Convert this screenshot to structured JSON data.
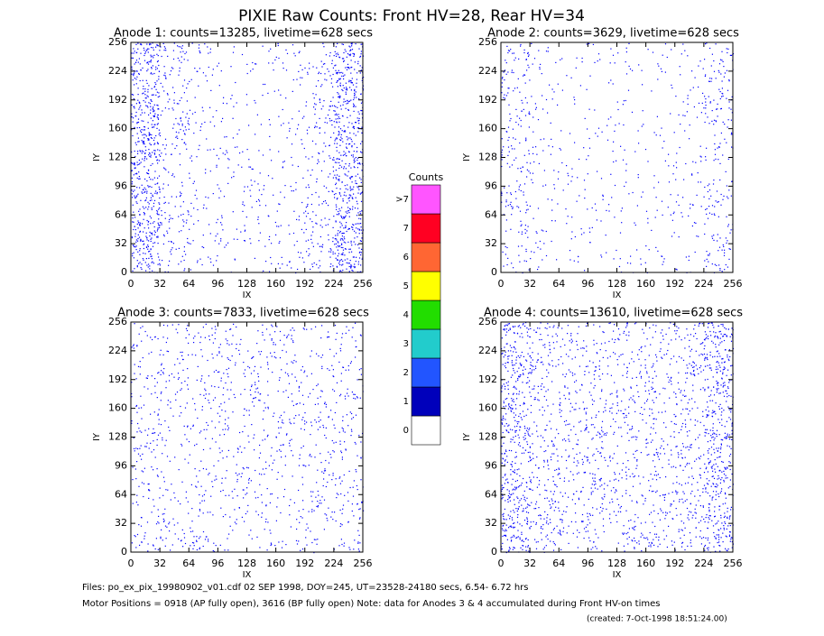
{
  "title": "PIXIE Raw Counts:  Front HV=28, Rear HV=34",
  "chart_data": [
    {
      "type": "scatter",
      "title": "Anode 1: counts=13285, livetime=628 secs",
      "xlabel": "IX",
      "ylabel": "IY",
      "xlim": [
        0,
        256
      ],
      "ylim": [
        0,
        256
      ],
      "xticks": [
        0,
        32,
        64,
        96,
        128,
        160,
        192,
        224,
        256
      ],
      "yticks": [
        0,
        32,
        64,
        96,
        128,
        160,
        192,
        224,
        256
      ],
      "color": "#0000ff",
      "column_density": [
        30,
        10,
        5,
        4,
        4,
        5,
        10,
        30
      ]
    },
    {
      "type": "scatter",
      "title": "Anode 2: counts=3629, livetime=628 secs",
      "xlabel": "IX",
      "ylabel": "IY",
      "xlim": [
        0,
        256
      ],
      "ylim": [
        0,
        256
      ],
      "xticks": [
        0,
        32,
        64,
        96,
        128,
        160,
        192,
        224,
        256
      ],
      "yticks": [
        0,
        32,
        64,
        96,
        128,
        160,
        192,
        224,
        256
      ],
      "color": "#0000ff",
      "column_density": [
        10,
        4,
        3,
        3,
        3,
        3,
        4,
        10
      ]
    },
    {
      "type": "scatter",
      "title": "Anode 3: counts=7833, livetime=628 secs",
      "xlabel": "IX",
      "ylabel": "IY",
      "xlim": [
        0,
        256
      ],
      "ylim": [
        0,
        256
      ],
      "xticks": [
        0,
        32,
        64,
        96,
        128,
        160,
        192,
        224,
        256
      ],
      "yticks": [
        0,
        32,
        64,
        96,
        128,
        160,
        192,
        224,
        256
      ],
      "color": "#0000ff",
      "column_density": [
        8,
        7,
        7,
        7,
        7,
        7,
        7,
        8
      ]
    },
    {
      "type": "scatter",
      "title": "Anode 4: counts=13610, livetime=628 secs",
      "xlabel": "IX",
      "ylabel": "IY",
      "xlim": [
        0,
        256
      ],
      "ylim": [
        0,
        256
      ],
      "xticks": [
        0,
        32,
        64,
        96,
        128,
        160,
        192,
        224,
        256
      ],
      "yticks": [
        0,
        32,
        64,
        96,
        128,
        160,
        192,
        224,
        256
      ],
      "color": "#0000ff",
      "column_density": [
        24,
        12,
        10,
        10,
        10,
        10,
        12,
        24
      ]
    }
  ],
  "colorbar": {
    "title": "Counts",
    "labels": [
      "0",
      "1",
      "2",
      "3",
      "4",
      "5",
      "6",
      "7",
      ">7"
    ],
    "colors": [
      "#ffffff",
      "#0000bb",
      "#2255ff",
      "#22cccc",
      "#22dd00",
      "#ffff00",
      "#ff6633",
      "#ff0022",
      "#ff55ff"
    ]
  },
  "footer": [
    "Files: po_ex_pix_19980902_v01.cdf    02 SEP 1998, DOY=245, UT=23528-24180 secs,  6.54- 6.72 hrs",
    "Motor Positions = 0918 (AP fully open), 3616 (BP fully open)    Note: data for Anodes 3 & 4 accumulated during Front HV-on times",
    "(created:  7-Oct-1998 18:51:24.00)"
  ]
}
